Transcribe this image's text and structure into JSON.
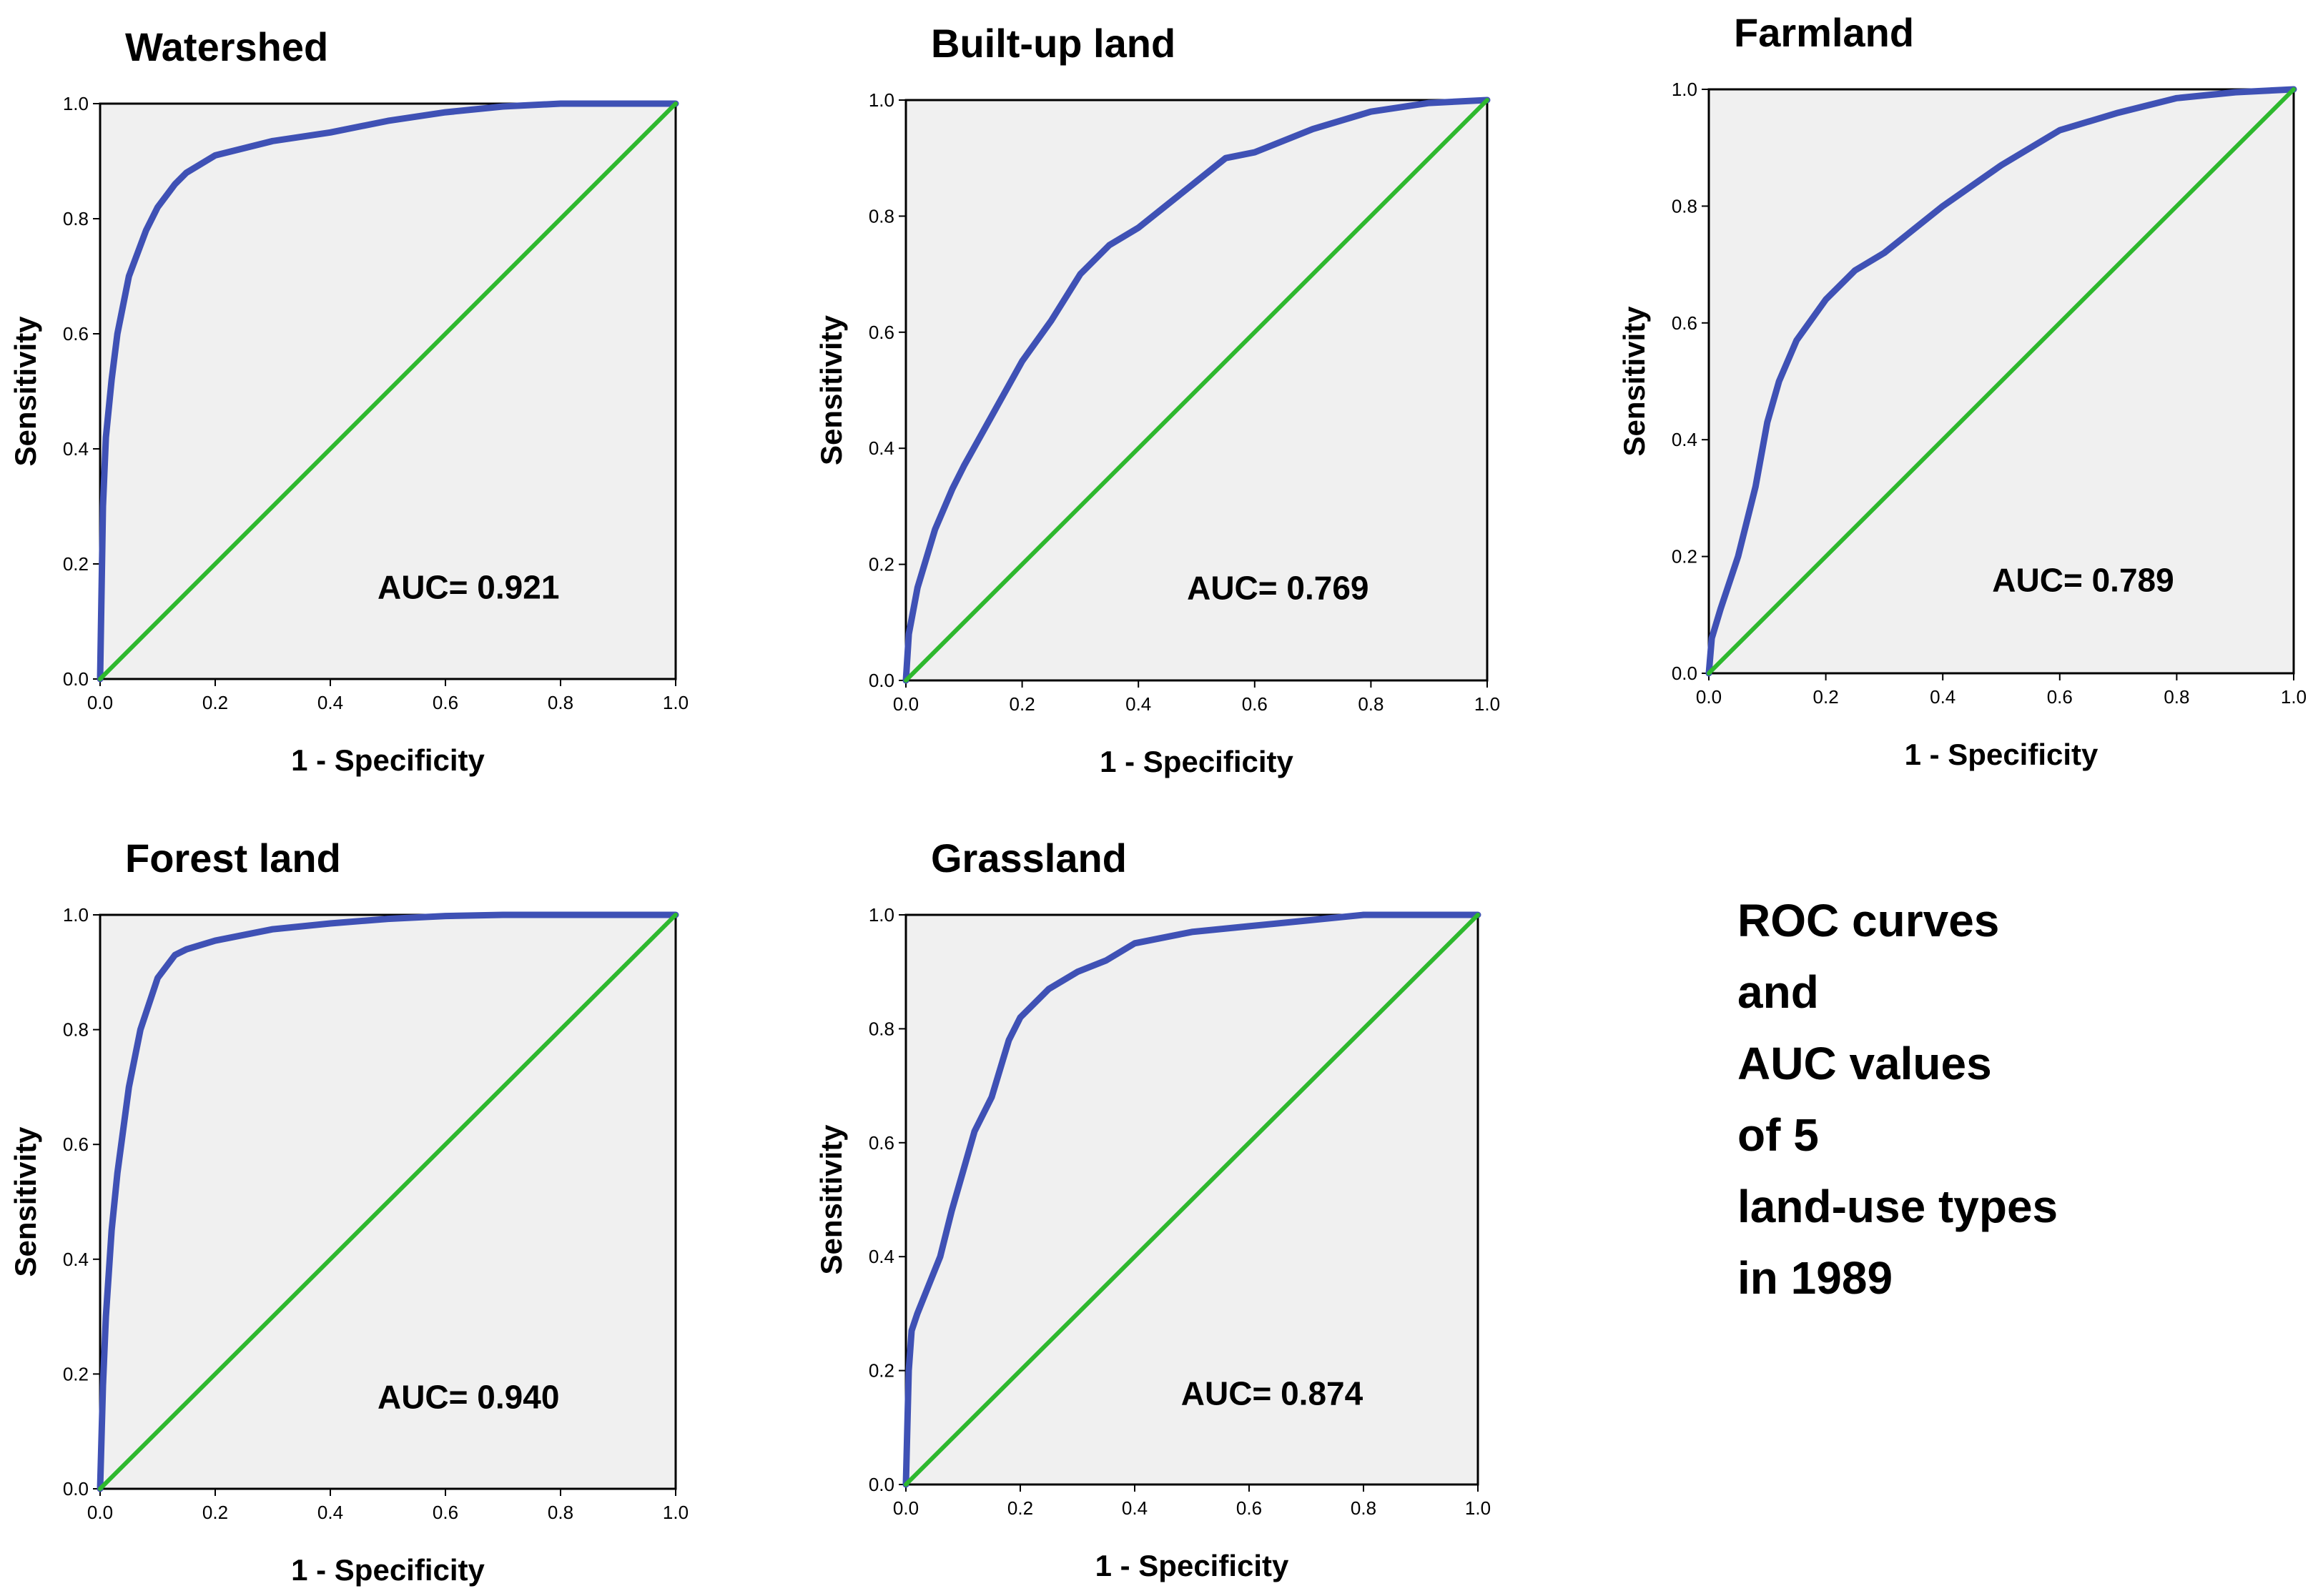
{
  "figure": {
    "caption_lines": [
      "ROC curves",
      "and",
      "AUC values",
      "of 5",
      "land-use types",
      "in 1989"
    ]
  },
  "colors": {
    "roc_curve": "#3f51b5",
    "reference_line": "#2eb82e",
    "plot_background": "#f0f0f0",
    "frame": "#000000"
  },
  "chart_data": [
    {
      "type": "line",
      "title": "Watershed",
      "xlabel": "1 - Specificity",
      "ylabel": "Sensitivity",
      "xlim": [
        0,
        1
      ],
      "ylim": [
        0,
        1
      ],
      "xticks": [
        "0.0",
        "0.2",
        "0.4",
        "0.6",
        "0.8",
        "1.0"
      ],
      "yticks": [
        "0.0",
        "0.2",
        "0.4",
        "0.6",
        "0.8",
        "1.0"
      ],
      "annotation": "AUC= 0.921",
      "series": [
        {
          "name": "ROC curve",
          "x": [
            0,
            0.005,
            0.01,
            0.02,
            0.03,
            0.05,
            0.08,
            0.1,
            0.13,
            0.15,
            0.2,
            0.3,
            0.4,
            0.5,
            0.6,
            0.7,
            0.8,
            0.9,
            1.0
          ],
          "y": [
            0,
            0.3,
            0.42,
            0.52,
            0.6,
            0.7,
            0.78,
            0.82,
            0.86,
            0.88,
            0.91,
            0.935,
            0.95,
            0.97,
            0.985,
            0.995,
            1.0,
            1.0,
            1.0
          ]
        },
        {
          "name": "Reference line",
          "x": [
            0,
            1
          ],
          "y": [
            0,
            1
          ]
        }
      ]
    },
    {
      "type": "line",
      "title": "Built-up land",
      "xlabel": "1 - Specificity",
      "ylabel": "Sensitivity",
      "xlim": [
        0,
        1
      ],
      "ylim": [
        0,
        1
      ],
      "xticks": [
        "0.0",
        "0.2",
        "0.4",
        "0.6",
        "0.8",
        "1.0"
      ],
      "yticks": [
        "0.0",
        "0.2",
        "0.4",
        "0.6",
        "0.8",
        "1.0"
      ],
      "annotation": "AUC= 0.769",
      "series": [
        {
          "name": "ROC curve",
          "x": [
            0,
            0.005,
            0.02,
            0.05,
            0.08,
            0.1,
            0.15,
            0.2,
            0.25,
            0.3,
            0.35,
            0.4,
            0.45,
            0.5,
            0.55,
            0.6,
            0.7,
            0.8,
            0.9,
            1.0
          ],
          "y": [
            0,
            0.08,
            0.16,
            0.26,
            0.33,
            0.37,
            0.46,
            0.55,
            0.62,
            0.7,
            0.75,
            0.78,
            0.82,
            0.86,
            0.9,
            0.91,
            0.95,
            0.98,
            0.995,
            1.0
          ]
        },
        {
          "name": "Reference line",
          "x": [
            0,
            1
          ],
          "y": [
            0,
            1
          ]
        }
      ]
    },
    {
      "type": "line",
      "title": "Farmland",
      "xlabel": "1 - Specificity",
      "ylabel": "Sensitivity",
      "xlim": [
        0,
        1
      ],
      "ylim": [
        0,
        1
      ],
      "xticks": [
        "0.0",
        "0.2",
        "0.4",
        "0.6",
        "0.8",
        "1.0"
      ],
      "yticks": [
        "0.0",
        "0.2",
        "0.4",
        "0.6",
        "0.8",
        "1.0"
      ],
      "annotation": "AUC= 0.789",
      "series": [
        {
          "name": "ROC curve",
          "x": [
            0,
            0.005,
            0.02,
            0.05,
            0.08,
            0.1,
            0.12,
            0.15,
            0.2,
            0.25,
            0.3,
            0.4,
            0.5,
            0.6,
            0.7,
            0.8,
            0.9,
            1.0
          ],
          "y": [
            0,
            0.06,
            0.11,
            0.2,
            0.32,
            0.43,
            0.5,
            0.57,
            0.64,
            0.69,
            0.72,
            0.8,
            0.87,
            0.93,
            0.96,
            0.985,
            0.995,
            1.0
          ]
        },
        {
          "name": "Reference line",
          "x": [
            0,
            1
          ],
          "y": [
            0,
            1
          ]
        }
      ]
    },
    {
      "type": "line",
      "title": "Forest land",
      "xlabel": "1 - Specificity",
      "ylabel": "Sensitivity",
      "xlim": [
        0,
        1
      ],
      "ylim": [
        0,
        1
      ],
      "xticks": [
        "0.0",
        "0.2",
        "0.4",
        "0.6",
        "0.8",
        "1.0"
      ],
      "yticks": [
        "0.0",
        "0.2",
        "0.4",
        "0.6",
        "0.8",
        "1.0"
      ],
      "annotation": "AUC= 0.940",
      "series": [
        {
          "name": "ROC curve",
          "x": [
            0,
            0.005,
            0.01,
            0.02,
            0.03,
            0.05,
            0.07,
            0.1,
            0.13,
            0.15,
            0.2,
            0.3,
            0.4,
            0.5,
            0.6,
            0.7,
            0.8,
            1.0
          ],
          "y": [
            0,
            0.18,
            0.3,
            0.45,
            0.55,
            0.7,
            0.8,
            0.89,
            0.93,
            0.94,
            0.955,
            0.975,
            0.985,
            0.993,
            0.998,
            1.0,
            1.0,
            1.0
          ]
        },
        {
          "name": "Reference line",
          "x": [
            0,
            1
          ],
          "y": [
            0,
            1
          ]
        }
      ]
    },
    {
      "type": "line",
      "title": "Grassland",
      "xlabel": "1 - Specificity",
      "ylabel": "Sensitivity",
      "xlim": [
        0,
        1
      ],
      "ylim": [
        0,
        1
      ],
      "xticks": [
        "0.0",
        "0.2",
        "0.4",
        "0.6",
        "0.8",
        "1.0"
      ],
      "yticks": [
        "0.0",
        "0.2",
        "0.4",
        "0.6",
        "0.8",
        "1.0"
      ],
      "annotation": "AUC= 0.874",
      "series": [
        {
          "name": "ROC curve",
          "x": [
            0,
            0.005,
            0.01,
            0.02,
            0.04,
            0.06,
            0.08,
            0.1,
            0.12,
            0.15,
            0.18,
            0.2,
            0.25,
            0.3,
            0.35,
            0.4,
            0.5,
            0.6,
            0.7,
            0.8,
            1.0
          ],
          "y": [
            0,
            0.2,
            0.27,
            0.3,
            0.35,
            0.4,
            0.48,
            0.55,
            0.62,
            0.68,
            0.78,
            0.82,
            0.87,
            0.9,
            0.92,
            0.95,
            0.97,
            0.98,
            0.99,
            1.0,
            1.0
          ]
        },
        {
          "name": "Reference line",
          "x": [
            0,
            1
          ],
          "y": [
            0,
            1
          ]
        }
      ]
    }
  ]
}
